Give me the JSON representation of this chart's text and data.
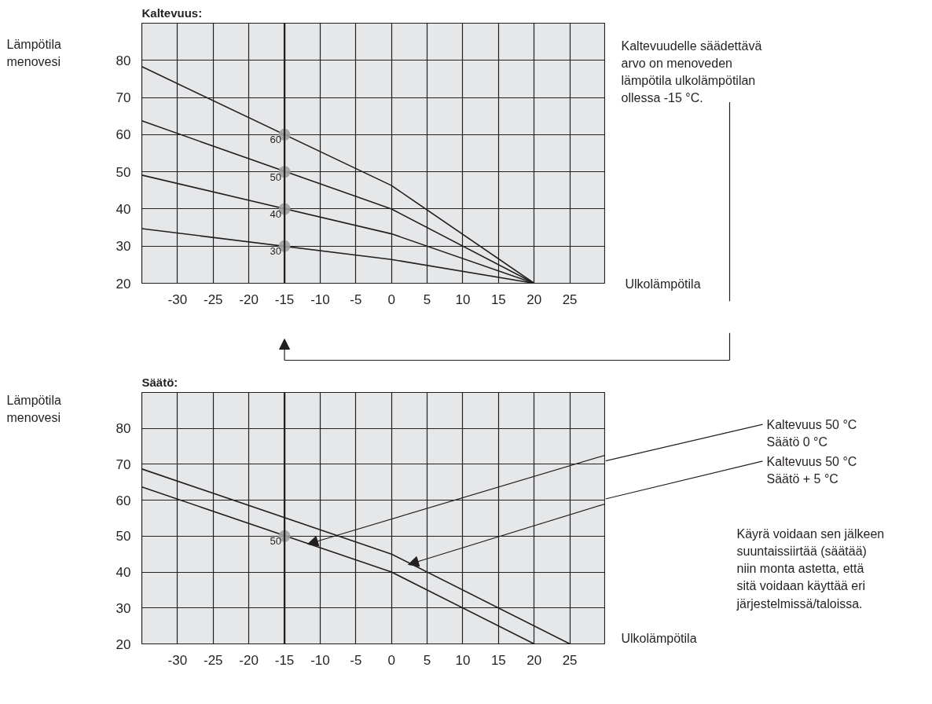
{
  "chart_data": [
    {
      "type": "line",
      "title": "Kaltevuus:",
      "xlabel": "Ulkolämpötila",
      "ylabel": "Lämpötila menovesi",
      "xlim": [
        -35,
        30
      ],
      "ylim": [
        20,
        90
      ],
      "xticks": [
        -30,
        -25,
        -20,
        -15,
        -10,
        -5,
        0,
        5,
        10,
        15,
        20,
        25
      ],
      "yticks": [
        20,
        30,
        40,
        50,
        60,
        70,
        80
      ],
      "grid": true,
      "series": [
        {
          "color": "#231f20",
          "x": [
            -35,
            0,
            20
          ],
          "values": [
            78.3,
            46.3,
            20
          ]
        },
        {
          "color": "#231f20",
          "x": [
            -35,
            0,
            20
          ],
          "values": [
            63.7,
            40,
            20
          ]
        },
        {
          "color": "#231f20",
          "x": [
            -35,
            0,
            20
          ],
          "values": [
            49.1,
            33.3,
            20
          ]
        },
        {
          "color": "#231f20",
          "x": [
            -35,
            0,
            20
          ],
          "values": [
            34.7,
            26.4,
            20
          ]
        },
        {
          "type": "scatter",
          "color": "#a0a0a0",
          "marker": "circle",
          "x": [
            -15,
            -15,
            -15,
            -15
          ],
          "values": [
            60,
            50,
            40,
            30
          ],
          "value_labels": [
            "60",
            "50",
            "40",
            "30"
          ]
        }
      ],
      "ref_lines": [
        {
          "axis": "x",
          "value": -15,
          "color": "#231f20"
        }
      ],
      "annotations": [
        "Kaltevuudelle säädettävä arvo on menoveden lämpötila ulkolämpötilan ollessa -15 °C."
      ]
    },
    {
      "type": "line",
      "title": "Säätö:",
      "xlabel": "Ulkolämpötila",
      "ylabel": "Lämpötila menovesi",
      "xlim": [
        -35,
        30
      ],
      "ylim": [
        20,
        90
      ],
      "xticks": [
        -30,
        -25,
        -20,
        -15,
        -10,
        -5,
        0,
        5,
        10,
        15,
        20,
        25
      ],
      "yticks": [
        20,
        30,
        40,
        50,
        60,
        70,
        80
      ],
      "grid": true,
      "series": [
        {
          "color": "#231f20",
          "x": [
            -35,
            0,
            25
          ],
          "values": [
            68.7,
            45,
            20
          ]
        },
        {
          "color": "#231f20",
          "x": [
            -35,
            0,
            20
          ],
          "values": [
            63.7,
            40,
            20
          ]
        },
        {
          "type": "scatter",
          "color": "#a0a0a0",
          "marker": "circle",
          "x": [
            -15
          ],
          "values": [
            50
          ],
          "value_labels": [
            "50"
          ]
        }
      ],
      "ref_lines": [
        {
          "axis": "x",
          "value": -15,
          "color": "#231f20"
        }
      ],
      "annotations": [
        "Kaltevuus 50 °C Säätö 0 °C",
        "Kaltevuus 50 °C Säätö + 5 °C",
        "Käyrä voidaan sen jälkeen suuntaissiirtää (säätää) niin monta astetta, että sitä voidaan käyttää eri järjestelmissä/taloissa."
      ]
    }
  ]
}
